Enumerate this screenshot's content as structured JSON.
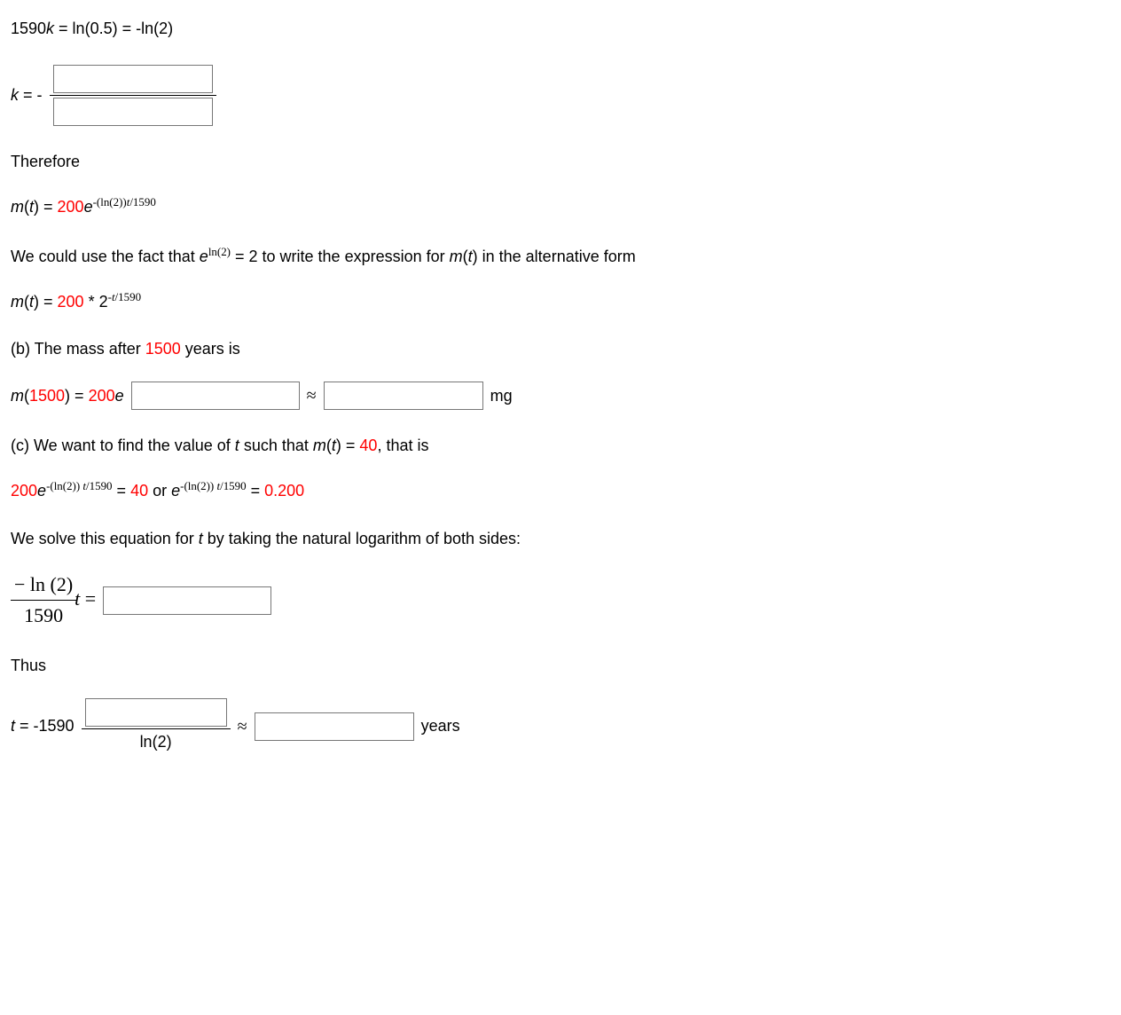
{
  "line1": {
    "lhs": "1590",
    "var": "k",
    "mid": " = ln(0.5) = -ln(2)"
  },
  "kline": {
    "prefix_var": "k",
    "prefix_rest": " = -"
  },
  "therefore": "Therefore",
  "mt1": {
    "lhs_var": "m",
    "lhs_paren": "(",
    "lhs_t": "t",
    "lhs_close": ") = ",
    "coef": "200",
    "e": "e",
    "exp_prefix": "-(ln(2))",
    "exp_t": "t",
    "exp_suffix": "/1590"
  },
  "p_eln2_a": "We could use the fact that ",
  "p_eln2_e": "e",
  "p_eln2_exp": "ln(2)",
  "p_eln2_b": " = 2 to write the expression for ",
  "p_eln2_mt": "m",
  "p_eln2_paren": "(",
  "p_eln2_t": "t",
  "p_eln2_close": ")",
  "p_eln2_c": " in the alternative form",
  "mt2": {
    "lhs_var": "m",
    "lhs_t": "t",
    "eq": ") = ",
    "coef": "200",
    "star": " * 2",
    "exp_prefix": "-",
    "exp_t": "t",
    "exp_suffix": "/1590"
  },
  "part_b_a": "(b) The mass after ",
  "part_b_num": "1500",
  "part_b_b": " years is",
  "m1500": {
    "lhs": "m",
    "arg": "1500",
    "eq": ") = ",
    "coef": "200",
    "e": "e",
    "approx": "≈",
    "unit": "mg"
  },
  "part_c_a": "(c) We want to find the value of ",
  "part_c_t": "t",
  "part_c_b": " such that ",
  "part_c_m": "m",
  "part_c_paren": "(",
  "part_c_t2": "t",
  "part_c_close": ")",
  "part_c_c": " = ",
  "part_c_40": "40",
  "part_c_d": ", that is",
  "eq_c": {
    "coef": "200",
    "e1": "e",
    "exp1_a": "-(ln(2)) ",
    "exp1_t": "t",
    "exp1_b": "/1590",
    "eq": " = ",
    "forty": "40",
    "or": " or ",
    "e2": "e",
    "exp2_a": "-(ln(2)) ",
    "exp2_t": "t",
    "exp2_b": "/1590",
    "eq2": " = ",
    "val": "0.200"
  },
  "solve_a": "We solve this equation for ",
  "solve_t": "t",
  "solve_b": " by taking the natural logarithm of both sides:",
  "lnfrac": {
    "num": "− ln (2)",
    "den": "1590",
    "t": "t",
    "eq": " ="
  },
  "thus": "Thus",
  "tline": {
    "t": "t",
    "eq": " = -1590",
    "den": "ln(2)",
    "approx": "≈",
    "unit": "years"
  }
}
